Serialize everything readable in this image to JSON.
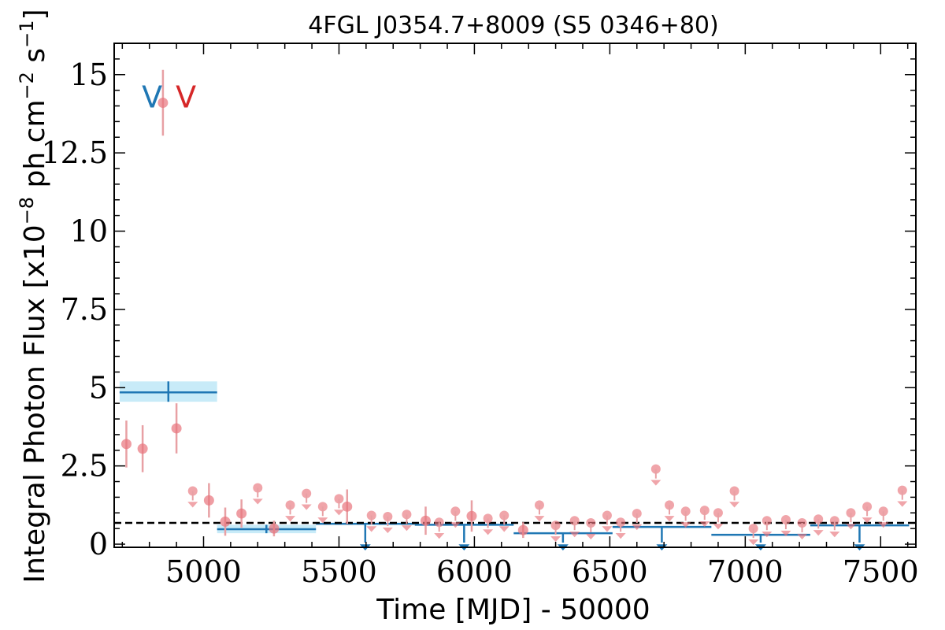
{
  "chart_data": {
    "type": "scatter",
    "title": "4FGL J0354.7+8009 (S5 0346+80)",
    "xlabel": "Time [MJD] - 50000",
    "ylabel": "Integral Photon Flux [x10",
    "ylabel_exp": "−8",
    "ylabel_mid": " ph cm",
    "ylabel_exp2": "−2",
    "ylabel_end": " s",
    "ylabel_exp3": "−1",
    "ylabel_close": "]",
    "xlim": [
      4670,
      7630
    ],
    "ylim": [
      -0.1,
      16
    ],
    "xticks": [
      5000,
      5500,
      6000,
      6500,
      7000,
      7500
    ],
    "xtick_labels": [
      "5000",
      "5500",
      "6000",
      "6500",
      "7000",
      "7500"
    ],
    "yticks": [
      0,
      2.5,
      5,
      7.5,
      10,
      12.5,
      15
    ],
    "ytick_labels": [
      "0",
      "2.5",
      "5",
      "7.5",
      "10",
      "12.5",
      "15"
    ],
    "annotations": [
      {
        "text": "V",
        "x": 4810,
        "y": 14.3,
        "color": "#1f77b4"
      },
      {
        "text": "V",
        "x": 4935,
        "y": 14.3,
        "color": "#d62728"
      }
    ],
    "mean_flux": 0.68,
    "colors": {
      "monthly": "#e8747c",
      "monthly_bar": "#e8a0a4",
      "yearly": "#1f77b4",
      "yearly_band": "#c8ebf8",
      "mean_line": "#000000"
    },
    "monthly_points": [
      {
        "x": 4715,
        "y": 3.2,
        "yerr": 0.75
      },
      {
        "x": 4775,
        "y": 3.05,
        "yerr": 0.75
      },
      {
        "x": 4850,
        "y": 14.1,
        "yerr": 1.05
      },
      {
        "x": 4900,
        "y": 3.7,
        "yerr": 0.8
      },
      {
        "x": 5020,
        "y": 1.4,
        "yerr": 0.55
      },
      {
        "x": 5080,
        "y": 0.72,
        "yerr": 0.45
      },
      {
        "x": 5140,
        "y": 0.98,
        "yerr": 0.45
      },
      {
        "x": 5260,
        "y": 0.5,
        "yerr": 0.25
      },
      {
        "x": 5530,
        "y": 1.2,
        "yerr": 0.55
      },
      {
        "x": 5820,
        "y": 0.75,
        "yerr": 0.45
      },
      {
        "x": 5990,
        "y": 0.9,
        "yerr": 0.5
      },
      {
        "x": 6180,
        "y": 0.45,
        "yerr": 0.25
      }
    ],
    "monthly_upper_limits": [
      {
        "x": 4960,
        "y": 1.7
      },
      {
        "x": 5200,
        "y": 1.8
      },
      {
        "x": 5320,
        "y": 1.25
      },
      {
        "x": 5380,
        "y": 1.62
      },
      {
        "x": 5440,
        "y": 1.2
      },
      {
        "x": 5500,
        "y": 1.45
      },
      {
        "x": 5620,
        "y": 0.92
      },
      {
        "x": 5680,
        "y": 0.88
      },
      {
        "x": 5750,
        "y": 0.95
      },
      {
        "x": 5870,
        "y": 0.7
      },
      {
        "x": 5930,
        "y": 1.05
      },
      {
        "x": 6050,
        "y": 0.82
      },
      {
        "x": 6110,
        "y": 0.92
      },
      {
        "x": 6240,
        "y": 1.25
      },
      {
        "x": 6300,
        "y": 0.6
      },
      {
        "x": 6370,
        "y": 0.75
      },
      {
        "x": 6430,
        "y": 0.68
      },
      {
        "x": 6490,
        "y": 0.92
      },
      {
        "x": 6540,
        "y": 0.7
      },
      {
        "x": 6600,
        "y": 0.98
      },
      {
        "x": 6670,
        "y": 2.4
      },
      {
        "x": 6720,
        "y": 1.25
      },
      {
        "x": 6780,
        "y": 1.05
      },
      {
        "x": 6850,
        "y": 1.08
      },
      {
        "x": 6900,
        "y": 1.0
      },
      {
        "x": 6960,
        "y": 1.7
      },
      {
        "x": 7030,
        "y": 0.5
      },
      {
        "x": 7080,
        "y": 0.75
      },
      {
        "x": 7150,
        "y": 0.78
      },
      {
        "x": 7210,
        "y": 0.68
      },
      {
        "x": 7270,
        "y": 0.8
      },
      {
        "x": 7330,
        "y": 0.75
      },
      {
        "x": 7390,
        "y": 1.0
      },
      {
        "x": 7450,
        "y": 1.2
      },
      {
        "x": 7510,
        "y": 1.05
      },
      {
        "x": 7580,
        "y": 1.72
      }
    ],
    "yearly_bins": [
      {
        "x0": 4690,
        "x1": 5050,
        "xc": 4870,
        "y": 4.85,
        "ylo": 4.55,
        "yhi": 5.2,
        "limit": false
      },
      {
        "x0": 5050,
        "x1": 5415,
        "xc": 5232,
        "y": 0.48,
        "ylo": 0.35,
        "yhi": 0.62,
        "limit": false
      },
      {
        "x0": 5415,
        "x1": 5780,
        "xc": 5597,
        "y": 0.65,
        "limit": true
      },
      {
        "x0": 5780,
        "x1": 6145,
        "xc": 5962,
        "y": 0.62,
        "limit": true
      },
      {
        "x0": 6145,
        "x1": 6510,
        "xc": 6327,
        "y": 0.35,
        "limit": true
      },
      {
        "x0": 6510,
        "x1": 6875,
        "xc": 6692,
        "y": 0.55,
        "limit": true
      },
      {
        "x0": 6875,
        "x1": 7240,
        "xc": 7057,
        "y": 0.3,
        "limit": true
      },
      {
        "x0": 7240,
        "x1": 7605,
        "xc": 7422,
        "y": 0.6,
        "limit": true
      }
    ]
  }
}
